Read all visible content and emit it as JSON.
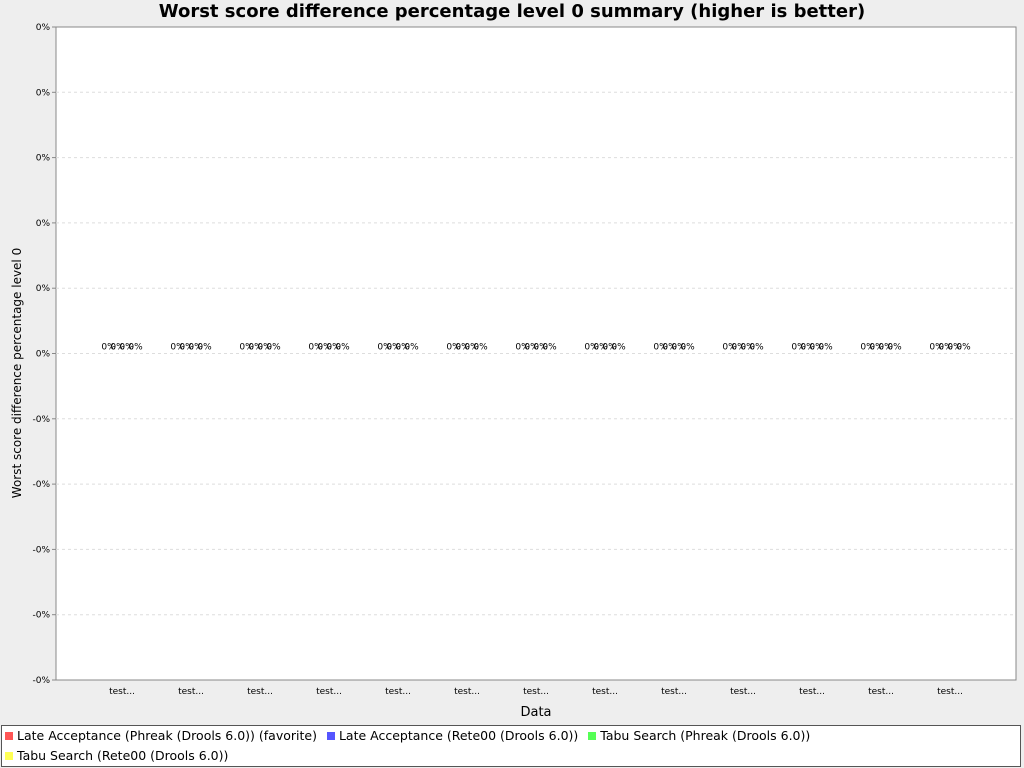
{
  "chart_data": {
    "type": "bar",
    "title": "Worst score difference percentage level 0 summary (higher is better)",
    "xlabel": "Data",
    "ylabel": "Worst score difference percentage level 0",
    "ylim": [
      -0.5,
      0.5
    ],
    "y_tick_labels": [
      "0%",
      "0%",
      "0%",
      "0%",
      "0%",
      "0%",
      "-0%",
      "-0%",
      "-0%",
      "-0%",
      "-0%"
    ],
    "categories": [
      "test...",
      "test...",
      "test...",
      "test...",
      "test...",
      "test...",
      "test...",
      "test...",
      "test...",
      "test...",
      "test...",
      "test...",
      "test..."
    ],
    "value_label": "0%",
    "series": [
      {
        "name": "Late Acceptance (Phreak (Drools 6.0)) (favorite)",
        "color": "#ff5555",
        "values": [
          0,
          0,
          0,
          0,
          0,
          0,
          0,
          0,
          0,
          0,
          0,
          0,
          0
        ]
      },
      {
        "name": "Late Acceptance (Rete00 (Drools 6.0))",
        "color": "#5555ff",
        "values": [
          0,
          0,
          0,
          0,
          0,
          0,
          0,
          0,
          0,
          0,
          0,
          0,
          0
        ]
      },
      {
        "name": "Tabu Search (Phreak (Drools 6.0))",
        "color": "#55ff55",
        "values": [
          0,
          0,
          0,
          0,
          0,
          0,
          0,
          0,
          0,
          0,
          0,
          0,
          0
        ]
      },
      {
        "name": "Tabu Search (Rete00 (Drools 6.0))",
        "color": "#ffff55",
        "values": [
          0,
          0,
          0,
          0,
          0,
          0,
          0,
          0,
          0,
          0,
          0,
          0,
          0
        ]
      }
    ],
    "grid": true,
    "legend_position": "bottom"
  }
}
